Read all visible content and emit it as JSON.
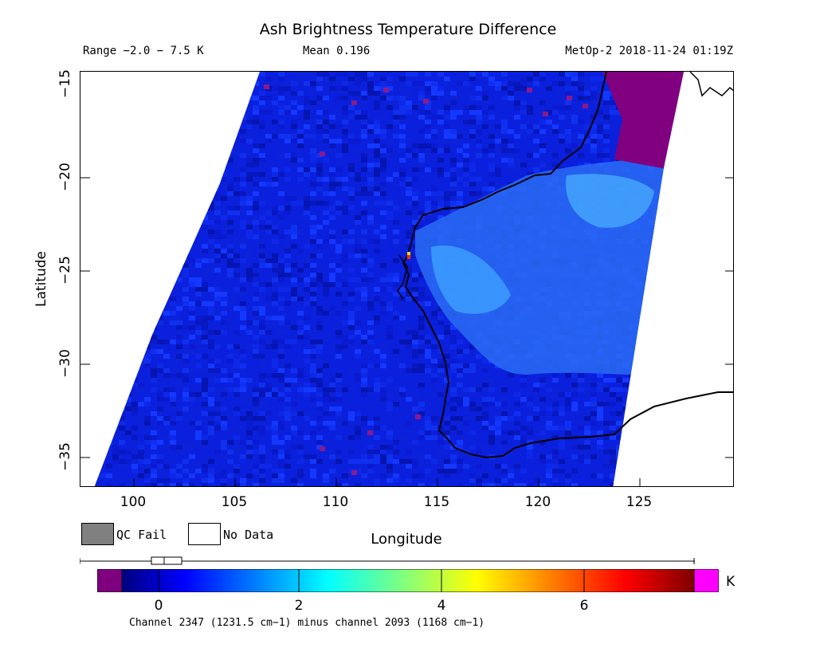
{
  "title": "Ash Brightness Temperature Difference",
  "range_text": "Range −2.0 − 7.5 K",
  "mean_text": "Mean 0.196",
  "satellite_text": "MetOp-2 2018-11-24 01:19Z",
  "axes": {
    "xlabel": "Longitude",
    "ylabel": "Latitude",
    "lon_ticks": [
      "100",
      "105",
      "110",
      "115",
      "120",
      "125"
    ],
    "lat_ticks": [
      "−15",
      "−20",
      "−25",
      "−30",
      "−35"
    ],
    "lon_range": [
      97.5,
      129.8
    ],
    "lat_range": [
      -36.5,
      -14.9
    ]
  },
  "legend": {
    "qc_fail": "QC Fail",
    "no_data": "No Data"
  },
  "colorbar": {
    "ticks": [
      "0",
      "2",
      "4",
      "6"
    ],
    "tick_values": [
      0,
      2,
      4,
      6
    ],
    "range": [
      -2.0,
      7.5
    ],
    "unit": "K",
    "under_color": "#7f007f",
    "over_color": "#ff00ff"
  },
  "footer": "Channel 2347 (1231.5 cm−1) minus channel 2093 (1168 cm−1)",
  "colors": {
    "ocean_field": "#0a22e0",
    "land_anomaly": "#2e8cff",
    "qc_fail": "#808080",
    "no_data": "#ffffff",
    "coastline": "#000000"
  }
}
